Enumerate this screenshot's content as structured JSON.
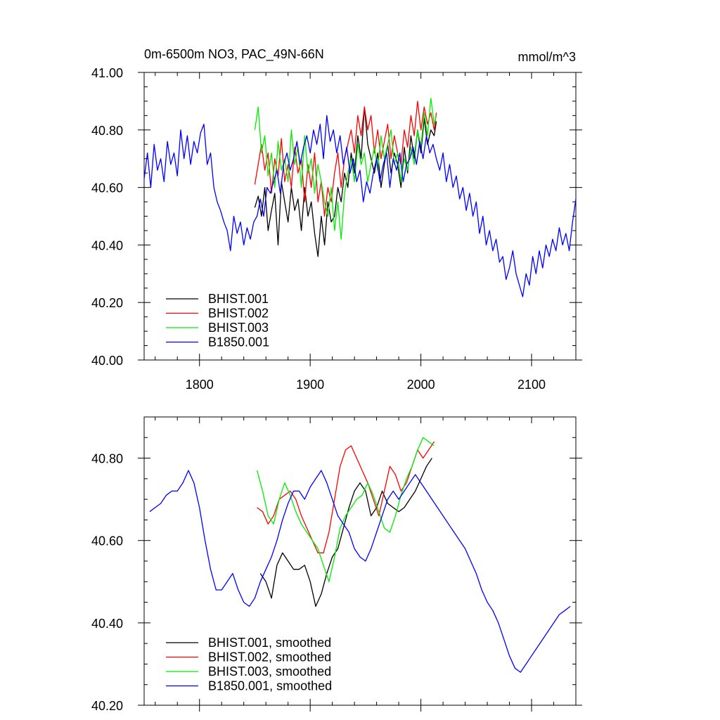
{
  "chart_data": [
    {
      "type": "line",
      "title": "0m-6500m NO3, PAC_49N-66N",
      "units": "mmol/m^3",
      "xlim": [
        1750,
        2140
      ],
      "ylim": [
        40.0,
        41.0
      ],
      "x_ticks": [
        1800,
        1900,
        2000,
        2100
      ],
      "x_tick_labels": [
        "1800",
        "1900",
        "2000",
        "2100"
      ],
      "y_ticks": [
        40.0,
        40.2,
        40.4,
        40.6,
        40.8,
        41.0
      ],
      "y_tick_labels": [
        "40.00",
        "40.20",
        "40.40",
        "40.60",
        "40.80",
        "41.00"
      ],
      "legend_position": "bottom-left",
      "series": [
        {
          "name": "BHIST.001",
          "color": "#000000",
          "x": [
            1850,
            1853,
            1856,
            1859,
            1862,
            1865,
            1868,
            1871,
            1874,
            1877,
            1880,
            1883,
            1886,
            1889,
            1892,
            1895,
            1898,
            1901,
            1904,
            1907,
            1910,
            1913,
            1916,
            1919,
            1922,
            1925,
            1928,
            1931,
            1934,
            1937,
            1940,
            1943,
            1946,
            1949,
            1952,
            1955,
            1958,
            1961,
            1964,
            1967,
            1970,
            1973,
            1976,
            1979,
            1982,
            1985,
            1988,
            1991,
            1994,
            1997,
            2000,
            2003,
            2006,
            2009,
            2012,
            2014
          ],
          "values": [
            40.53,
            40.57,
            40.5,
            40.6,
            40.45,
            40.52,
            40.58,
            40.4,
            40.62,
            40.55,
            40.48,
            40.6,
            40.52,
            40.56,
            40.45,
            40.6,
            40.5,
            40.55,
            40.44,
            40.36,
            40.5,
            40.4,
            40.55,
            40.48,
            40.5,
            40.6,
            40.55,
            40.65,
            40.6,
            40.72,
            40.65,
            40.78,
            40.7,
            40.88,
            40.75,
            40.7,
            40.65,
            40.72,
            40.6,
            40.68,
            40.75,
            40.65,
            40.72,
            40.68,
            40.6,
            40.74,
            40.65,
            40.78,
            40.7,
            40.8,
            40.72,
            40.84,
            40.75,
            40.8,
            40.78,
            40.83
          ]
        },
        {
          "name": "BHIST.002",
          "color": "#ff0000",
          "x": [
            1850,
            1853,
            1856,
            1859,
            1862,
            1865,
            1868,
            1871,
            1874,
            1877,
            1880,
            1883,
            1886,
            1889,
            1892,
            1895,
            1898,
            1901,
            1904,
            1907,
            1910,
            1913,
            1916,
            1919,
            1922,
            1925,
            1928,
            1931,
            1934,
            1937,
            1940,
            1943,
            1946,
            1949,
            1952,
            1955,
            1958,
            1961,
            1964,
            1967,
            1970,
            1973,
            1976,
            1979,
            1982,
            1985,
            1988,
            1991,
            1994,
            1997,
            2000,
            2003,
            2006,
            2009,
            2012,
            2014
          ],
          "values": [
            40.61,
            40.68,
            40.75,
            40.66,
            40.72,
            40.58,
            40.7,
            40.64,
            40.77,
            40.62,
            40.68,
            40.6,
            40.74,
            40.65,
            40.7,
            40.55,
            40.68,
            40.6,
            40.72,
            40.55,
            40.62,
            40.5,
            40.6,
            40.55,
            40.65,
            40.72,
            40.6,
            40.7,
            40.75,
            40.8,
            40.72,
            40.85,
            40.78,
            40.88,
            40.8,
            40.85,
            40.72,
            40.8,
            40.7,
            40.76,
            40.82,
            40.7,
            40.78,
            40.72,
            40.68,
            40.8,
            40.74,
            40.85,
            40.78,
            40.9,
            40.8,
            40.88,
            40.82,
            40.86,
            40.8,
            40.86
          ]
        },
        {
          "name": "BHIST.003",
          "color": "#00ee00",
          "x": [
            1850,
            1853,
            1856,
            1859,
            1862,
            1865,
            1868,
            1871,
            1874,
            1877,
            1880,
            1883,
            1886,
            1889,
            1892,
            1895,
            1898,
            1901,
            1904,
            1907,
            1910,
            1913,
            1916,
            1919,
            1922,
            1925,
            1928,
            1931,
            1934,
            1937,
            1940,
            1943,
            1946,
            1949,
            1952,
            1955,
            1958,
            1961,
            1964,
            1967,
            1970,
            1973,
            1976,
            1979,
            1982,
            1985,
            1988,
            1991,
            1994,
            1997,
            2000,
            2003,
            2006,
            2009,
            2012,
            2014
          ],
          "values": [
            40.8,
            40.88,
            40.72,
            40.78,
            40.64,
            40.72,
            40.6,
            40.76,
            40.66,
            40.7,
            40.62,
            40.8,
            40.68,
            40.74,
            40.6,
            40.78,
            40.65,
            40.7,
            40.58,
            40.68,
            40.62,
            40.55,
            40.5,
            40.6,
            40.45,
            40.55,
            40.42,
            40.58,
            40.65,
            40.7,
            40.62,
            40.75,
            40.68,
            40.72,
            40.62,
            40.68,
            40.74,
            40.66,
            40.78,
            40.7,
            40.75,
            40.8,
            40.68,
            40.72,
            40.62,
            40.7,
            40.66,
            40.74,
            40.68,
            40.8,
            40.74,
            40.86,
            40.78,
            40.91,
            40.82,
            40.85
          ]
        },
        {
          "name": "B1850.001",
          "color": "#0000ff",
          "x": [
            1750,
            1753,
            1756,
            1759,
            1762,
            1765,
            1768,
            1771,
            1774,
            1777,
            1780,
            1783,
            1786,
            1789,
            1792,
            1795,
            1798,
            1801,
            1804,
            1807,
            1810,
            1813,
            1816,
            1819,
            1822,
            1825,
            1828,
            1831,
            1834,
            1837,
            1840,
            1843,
            1846,
            1849,
            1852,
            1855,
            1858,
            1861,
            1864,
            1867,
            1870,
            1873,
            1876,
            1879,
            1882,
            1885,
            1888,
            1891,
            1894,
            1897,
            1900,
            1903,
            1906,
            1909,
            1912,
            1915,
            1918,
            1921,
            1924,
            1927,
            1930,
            1933,
            1936,
            1939,
            1942,
            1945,
            1948,
            1951,
            1954,
            1957,
            1960,
            1963,
            1966,
            1969,
            1972,
            1975,
            1978,
            1981,
            1984,
            1987,
            1990,
            1993,
            1996,
            1999,
            2002,
            2005,
            2008,
            2011,
            2014,
            2017,
            2020,
            2023,
            2026,
            2029,
            2032,
            2035,
            2038,
            2041,
            2044,
            2047,
            2050,
            2053,
            2056,
            2059,
            2062,
            2065,
            2068,
            2071,
            2074,
            2077,
            2080,
            2083,
            2086,
            2089,
            2092,
            2095,
            2098,
            2101,
            2104,
            2107,
            2110,
            2113,
            2116,
            2119,
            2122,
            2125,
            2128,
            2131,
            2134,
            2137,
            2140
          ],
          "values": [
            40.63,
            40.72,
            40.6,
            40.75,
            40.66,
            40.7,
            40.62,
            40.76,
            40.68,
            40.72,
            40.64,
            40.8,
            40.7,
            40.78,
            40.68,
            40.76,
            40.72,
            40.79,
            40.82,
            40.68,
            40.72,
            40.6,
            40.55,
            40.52,
            40.48,
            40.45,
            40.38,
            40.5,
            40.44,
            40.48,
            40.4,
            40.46,
            40.42,
            40.48,
            40.5,
            40.56,
            40.5,
            40.6,
            40.58,
            40.62,
            40.66,
            40.58,
            40.68,
            40.72,
            40.66,
            40.7,
            40.76,
            40.68,
            40.74,
            40.78,
            40.72,
            40.8,
            40.75,
            40.82,
            40.7,
            40.85,
            40.76,
            40.8,
            40.72,
            40.78,
            40.68,
            40.74,
            40.65,
            40.7,
            40.62,
            40.66,
            40.55,
            40.62,
            40.58,
            40.65,
            40.7,
            40.62,
            40.68,
            40.72,
            40.6,
            40.7,
            40.66,
            40.72,
            40.62,
            40.68,
            40.7,
            40.74,
            40.68,
            40.76,
            40.7,
            40.78,
            40.72,
            40.75,
            40.7,
            40.66,
            40.72,
            40.62,
            40.68,
            40.6,
            40.64,
            40.56,
            40.6,
            40.52,
            40.58,
            40.5,
            40.55,
            40.44,
            40.5,
            40.4,
            40.45,
            40.38,
            40.42,
            40.34,
            40.36,
            40.28,
            40.32,
            40.38,
            40.3,
            40.26,
            40.22,
            40.3,
            40.26,
            40.36,
            40.3,
            40.38,
            40.32,
            40.4,
            40.36,
            40.42,
            40.38,
            40.46,
            40.4,
            40.44,
            40.38,
            40.48,
            40.56
          ]
        }
      ]
    },
    {
      "type": "line",
      "title": "",
      "xlim": [
        1750,
        2140
      ],
      "ylim": [
        40.2,
        40.9
      ],
      "x_ticks": [
        1800,
        1900,
        2000,
        2100
      ],
      "y_ticks": [
        40.2,
        40.4,
        40.6,
        40.8
      ],
      "y_tick_labels": [
        "40.20",
        "40.40",
        "40.60",
        "40.80"
      ],
      "legend_position": "bottom-left",
      "series": [
        {
          "name": "BHIST.001, smoothed",
          "color": "#000000",
          "x": [
            1855,
            1860,
            1865,
            1870,
            1875,
            1880,
            1885,
            1890,
            1895,
            1900,
            1905,
            1910,
            1915,
            1920,
            1925,
            1930,
            1935,
            1940,
            1945,
            1950,
            1955,
            1960,
            1965,
            1970,
            1975,
            1980,
            1985,
            1990,
            1995,
            2000,
            2005,
            2010
          ],
          "values": [
            40.52,
            40.5,
            40.46,
            40.54,
            40.57,
            40.55,
            40.53,
            40.53,
            40.54,
            40.5,
            40.44,
            40.47,
            40.52,
            40.56,
            40.58,
            40.63,
            40.68,
            40.72,
            40.74,
            40.72,
            40.66,
            40.68,
            40.72,
            40.69,
            40.68,
            40.67,
            40.68,
            40.7,
            40.72,
            40.75,
            40.78,
            40.8
          ]
        },
        {
          "name": "BHIST.002, smoothed",
          "color": "#ff0000",
          "x": [
            1852,
            1857,
            1862,
            1867,
            1872,
            1877,
            1882,
            1887,
            1892,
            1897,
            1902,
            1907,
            1912,
            1917,
            1922,
            1927,
            1932,
            1937,
            1942,
            1947,
            1952,
            1957,
            1962,
            1967,
            1972,
            1977,
            1982,
            1987,
            1992,
            1997,
            2002,
            2007,
            2012
          ],
          "values": [
            40.68,
            40.67,
            40.64,
            40.66,
            40.7,
            40.71,
            40.72,
            40.7,
            40.66,
            40.63,
            40.6,
            40.57,
            40.57,
            40.62,
            40.7,
            40.78,
            40.82,
            40.83,
            40.8,
            40.77,
            40.74,
            40.7,
            40.66,
            40.72,
            40.78,
            40.76,
            40.72,
            40.74,
            40.78,
            40.82,
            40.8,
            40.82,
            40.84
          ]
        },
        {
          "name": "BHIST.003, smoothed",
          "color": "#00ee00",
          "x": [
            1852,
            1857,
            1862,
            1867,
            1872,
            1877,
            1882,
            1887,
            1892,
            1897,
            1902,
            1907,
            1912,
            1917,
            1922,
            1927,
            1932,
            1937,
            1942,
            1947,
            1952,
            1957,
            1962,
            1967,
            1972,
            1977,
            1982,
            1987,
            1992,
            1997,
            2002,
            2007,
            2012
          ],
          "values": [
            40.77,
            40.72,
            40.66,
            40.64,
            40.7,
            40.74,
            40.71,
            40.67,
            40.64,
            40.62,
            40.6,
            40.58,
            40.54,
            40.5,
            40.56,
            40.63,
            40.66,
            40.68,
            40.7,
            40.71,
            40.74,
            40.71,
            40.67,
            40.63,
            40.62,
            40.66,
            40.71,
            40.75,
            40.78,
            40.82,
            40.85,
            40.84,
            40.83
          ]
        },
        {
          "name": "B1850.001, smoothed",
          "color": "#0000ff",
          "x": [
            1755,
            1760,
            1765,
            1770,
            1775,
            1780,
            1785,
            1790,
            1795,
            1800,
            1805,
            1810,
            1815,
            1820,
            1825,
            1830,
            1835,
            1840,
            1845,
            1850,
            1855,
            1860,
            1865,
            1870,
            1875,
            1880,
            1885,
            1890,
            1895,
            1900,
            1905,
            1910,
            1915,
            1920,
            1925,
            1930,
            1935,
            1940,
            1945,
            1950,
            1955,
            1960,
            1965,
            1970,
            1975,
            1980,
            1985,
            1990,
            1995,
            2000,
            2005,
            2010,
            2015,
            2020,
            2025,
            2030,
            2035,
            2040,
            2045,
            2050,
            2055,
            2060,
            2065,
            2070,
            2075,
            2080,
            2085,
            2090,
            2095,
            2100,
            2105,
            2110,
            2115,
            2120,
            2125,
            2130,
            2135
          ],
          "values": [
            40.67,
            40.68,
            40.69,
            40.71,
            40.72,
            40.72,
            40.74,
            40.77,
            40.74,
            40.68,
            40.6,
            40.53,
            40.48,
            40.48,
            40.5,
            40.52,
            40.48,
            40.45,
            40.44,
            40.46,
            40.5,
            40.53,
            40.56,
            40.6,
            40.65,
            40.69,
            40.72,
            40.72,
            40.7,
            40.73,
            40.75,
            40.77,
            40.74,
            40.7,
            40.66,
            40.64,
            40.62,
            40.58,
            40.56,
            40.55,
            40.58,
            40.62,
            40.66,
            40.7,
            40.72,
            40.7,
            40.72,
            40.74,
            40.76,
            40.74,
            40.72,
            40.7,
            40.68,
            40.66,
            40.64,
            40.62,
            40.6,
            40.58,
            40.55,
            40.52,
            40.48,
            40.45,
            40.43,
            40.4,
            40.36,
            40.32,
            40.29,
            40.28,
            40.3,
            40.32,
            40.34,
            40.36,
            40.38,
            40.4,
            40.42,
            40.43,
            40.44
          ]
        }
      ]
    }
  ]
}
